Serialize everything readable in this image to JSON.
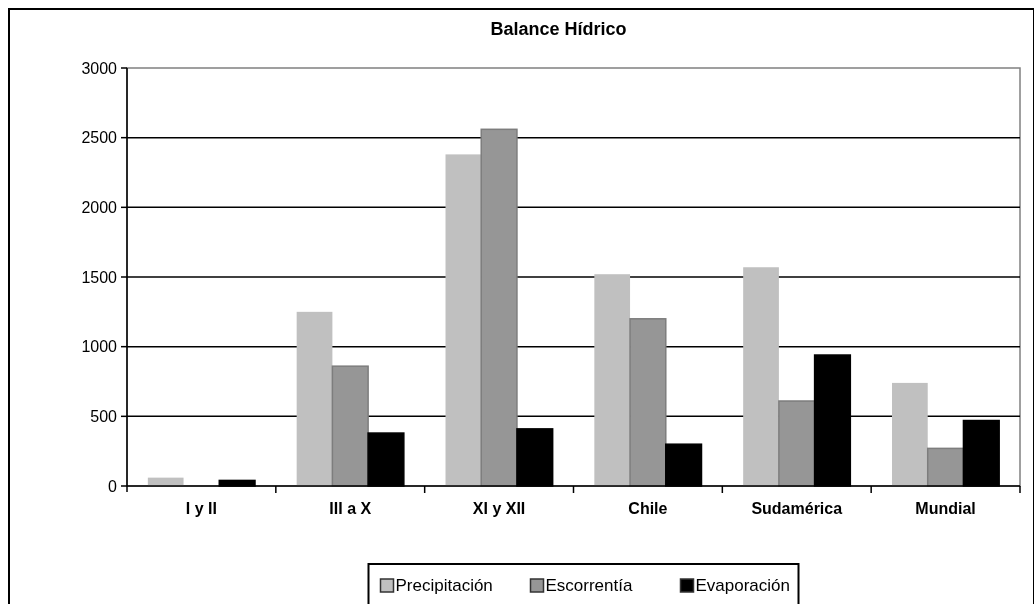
{
  "chart_data": {
    "type": "bar",
    "title": "Balance Hídrico",
    "categories": [
      "I y II",
      "III a X",
      "XI y XII",
      "Chile",
      "Sudamérica",
      "Mundial"
    ],
    "series": [
      {
        "name": "Precipitación",
        "color": "#c0c0c0",
        "values": [
          60,
          1250,
          2380,
          1520,
          1570,
          740
        ]
      },
      {
        "name": "Escorrentía",
        "color": "#969696",
        "values": [
          0,
          860,
          2560,
          1200,
          610,
          270
        ]
      },
      {
        "name": "Evaporación",
        "color": "#000000",
        "values": [
          40,
          380,
          410,
          300,
          940,
          470
        ]
      }
    ],
    "ylim": [
      0,
      3000
    ],
    "yticks": [
      0,
      500,
      1000,
      1500,
      2000,
      2500,
      3000
    ],
    "grid": "y",
    "legend": "bottom"
  }
}
